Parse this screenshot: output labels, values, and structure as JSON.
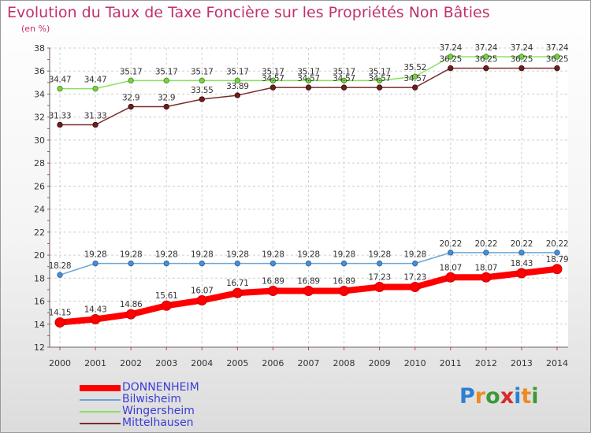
{
  "title": "Evolution du Taux de Taxe Foncière sur les Propriétés Non Bâties",
  "unit_label": "(en %)",
  "logo_text": "Proxiti",
  "chart_data": {
    "type": "line",
    "title": "Evolution du Taux de Taxe Foncière sur les Propriétés Non Bâties",
    "ylabel": "(en %)",
    "xlabel": "",
    "x": [
      "2000",
      "2001",
      "2002",
      "2003",
      "2004",
      "2005",
      "2006",
      "2007",
      "2008",
      "2009",
      "2010",
      "2011",
      "2012",
      "2013",
      "2014"
    ],
    "ylim": [
      12,
      38
    ],
    "yticks": [
      12,
      14,
      16,
      18,
      20,
      22,
      24,
      26,
      28,
      30,
      32,
      34,
      36,
      38
    ],
    "grid": true,
    "legend_position": "bottom-left",
    "series": [
      {
        "name": "DONNENHEIM",
        "color": "#ff0000",
        "values": [
          14.15,
          14.43,
          14.86,
          15.61,
          16.07,
          16.71,
          16.89,
          16.89,
          16.89,
          17.23,
          17.23,
          18.07,
          18.07,
          18.43,
          18.79
        ],
        "labels": [
          "14.15",
          "14.43",
          "14.86",
          "15.61",
          "16.07",
          "16.71",
          "16.89",
          "16.89",
          "16.89",
          "17.23",
          "17.23",
          "18.07",
          "18.07",
          "18.43",
          "18.79"
        ]
      },
      {
        "name": "Bilwisheim",
        "color": "#6aa6d6",
        "values": [
          18.28,
          19.28,
          19.28,
          19.28,
          19.28,
          19.28,
          19.28,
          19.28,
          19.28,
          19.28,
          19.28,
          20.22,
          20.22,
          20.22,
          20.22
        ],
        "labels": [
          "18.28",
          "19.28",
          "19.28",
          "19.28",
          "19.28",
          "19.28",
          "19.28",
          "19.28",
          "19.28",
          "19.28",
          "19.28",
          "20.22",
          "20.22",
          "20.22",
          "20.22"
        ]
      },
      {
        "name": "Wingersheim",
        "color": "#88e060",
        "values": [
          34.47,
          34.47,
          35.17,
          35.17,
          35.17,
          35.17,
          35.17,
          35.17,
          35.17,
          35.17,
          35.52,
          37.24,
          37.24,
          37.24,
          37.24
        ],
        "labels": [
          "34.47",
          "34.47",
          "35.17",
          "35.17",
          "35.17",
          "35.17",
          "35.17",
          "35.17",
          "35.17",
          "35.17",
          "35.52",
          "37.24",
          "37.24",
          "37.24",
          "37.24"
        ]
      },
      {
        "name": "Mittelhausen",
        "color": "#7a2c2c",
        "values": [
          31.33,
          31.33,
          32.9,
          32.9,
          33.55,
          33.89,
          34.57,
          34.57,
          34.57,
          34.57,
          34.57,
          36.25,
          36.25,
          36.25,
          36.25
        ],
        "labels": [
          "31.33",
          "31.33",
          "32.9",
          "32.9",
          "33.55",
          "33.89",
          "34.57",
          "34.57",
          "34.57",
          "34.57",
          "34.57",
          "36.25",
          "36.25",
          "36.25",
          "36.25"
        ]
      }
    ]
  }
}
